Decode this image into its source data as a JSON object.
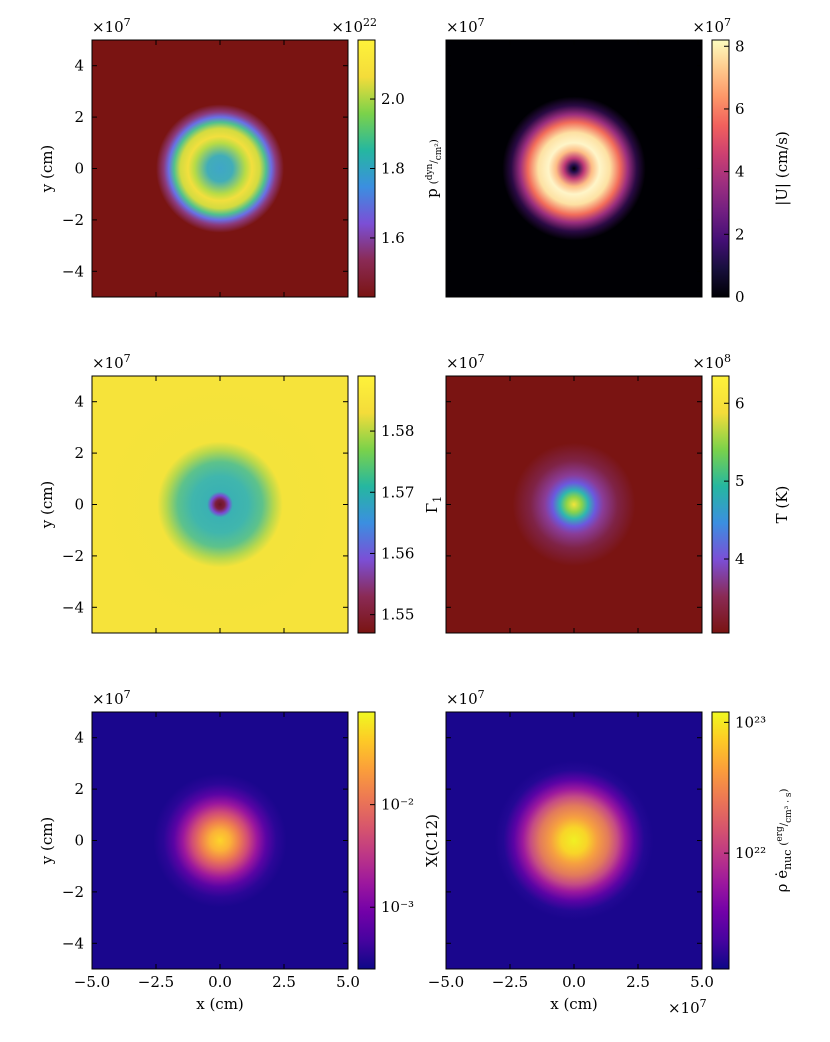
{
  "figure": {
    "x_axis_label": "x  (cm)",
    "y_axis_label": "y  (cm)",
    "axis_multiplier": "×10",
    "axis_multiplier_exp": "7",
    "x_ticks": [
      "−5.0",
      "−2.5",
      "0.0",
      "2.5",
      "5.0"
    ],
    "y_ticks": [
      "4",
      "2",
      "0",
      "−2",
      "−4"
    ]
  },
  "colors": {
    "magma": [
      "#000004",
      "#180f3d",
      "#440f76",
      "#721f81",
      "#9e2f7f",
      "#cd4071",
      "#f1605d",
      "#fd9668",
      "#feca8d",
      "#fcfdbf"
    ],
    "plasma": [
      "#0d0887",
      "#46039f",
      "#7201a8",
      "#9c179e",
      "#bd3786",
      "#d8576b",
      "#ed7953",
      "#fb9f3a",
      "#fdca26",
      "#f0f921"
    ],
    "smooth_pressure": [
      "#7a1412",
      "#8a2a55",
      "#7b4fd6",
      "#3b8fe0",
      "#25b7a0",
      "#7bd24a",
      "#f4dc3a",
      "#fef23a"
    ]
  },
  "chart_data": [
    {
      "type": "heatmap",
      "title": "",
      "xlabel": "",
      "ylabel": "y  (cm)",
      "xlim": [
        -50000000.0,
        50000000.0
      ],
      "ylim": [
        -50000000.0,
        50000000.0
      ],
      "field": "ring",
      "colormap": "smooth_pressure",
      "colorbar": {
        "label": "p  (dyn/cm²)",
        "multiplier": "×10",
        "multiplier_exp": "22",
        "ticks": [
          "2.0",
          "1.8",
          "1.6"
        ],
        "tick_values": [
          2.0,
          1.8,
          1.6
        ],
        "range": [
          1.43,
          2.17
        ]
      }
    },
    {
      "type": "heatmap",
      "title": "",
      "xlabel": "",
      "ylabel": "",
      "xlim": [
        -50000000.0,
        50000000.0
      ],
      "ylim": [
        -50000000.0,
        50000000.0
      ],
      "field": "donut",
      "colormap": "magma",
      "colorbar": {
        "label": "|U|  (cm/s)",
        "multiplier": "×10",
        "multiplier_exp": "7",
        "ticks": [
          "8",
          "6",
          "4",
          "2",
          "0"
        ],
        "tick_values": [
          8,
          6,
          4,
          2,
          0
        ],
        "range": [
          0,
          8.2
        ]
      }
    },
    {
      "type": "heatmap",
      "title": "",
      "xlabel": "",
      "ylabel": "y  (cm)",
      "xlim": [
        -50000000.0,
        50000000.0
      ],
      "ylim": [
        -50000000.0,
        50000000.0
      ],
      "field": "gamma",
      "colormap": "smooth_pressure",
      "colorbar": {
        "label": "Γ",
        "label_sub": "1",
        "multiplier": "",
        "multiplier_exp": "",
        "ticks": [
          "1.58",
          "1.57",
          "1.56",
          "1.55"
        ],
        "tick_values": [
          1.58,
          1.57,
          1.56,
          1.55
        ],
        "range": [
          1.547,
          1.589
        ]
      }
    },
    {
      "type": "heatmap",
      "title": "",
      "xlabel": "",
      "ylabel": "",
      "xlim": [
        -50000000.0,
        50000000.0
      ],
      "ylim": [
        -50000000.0,
        50000000.0
      ],
      "field": "temperature",
      "colormap": "smooth_pressure",
      "colorbar": {
        "label": "T  (K)",
        "multiplier": "×10",
        "multiplier_exp": "8",
        "ticks": [
          "6",
          "5",
          "4"
        ],
        "tick_values": [
          6,
          5,
          4
        ],
        "range": [
          3.05,
          6.35
        ]
      }
    },
    {
      "type": "heatmap",
      "title": "",
      "xlabel": "x  (cm)",
      "ylabel": "y  (cm)",
      "xlim": [
        -50000000.0,
        50000000.0
      ],
      "ylim": [
        -50000000.0,
        50000000.0
      ],
      "field": "blob",
      "colormap": "plasma",
      "colorbar": {
        "label": "X(C12)",
        "multiplier": "",
        "multiplier_exp": "",
        "log": true,
        "ticks": [
          "10⁻²",
          "10⁻³"
        ],
        "tick_values": [
          0.01,
          0.001
        ],
        "range": [
          0.00025,
          0.08
        ]
      }
    },
    {
      "type": "heatmap",
      "title": "",
      "xlabel": "x  (cm)",
      "ylabel": "",
      "xlim": [
        -50000000.0,
        50000000.0
      ],
      "ylim": [
        -50000000.0,
        50000000.0
      ],
      "field": "energy",
      "colormap": "plasma",
      "colorbar": {
        "label": "ρ ėnuc  (erg/(cm³·s))",
        "multiplier": "",
        "multiplier_exp": "",
        "log": true,
        "ticks": [
          "10²³",
          "10²²"
        ],
        "tick_values": [
          1e+23,
          1e+22
        ],
        "range": [
          1.3e+21,
          1.2e+23
        ]
      }
    }
  ],
  "panel_labels": [
    {
      "y_title": "y  (cm)",
      "cb_main": "p",
      "cb_frac_top": "dyn",
      "cb_frac_bot": "cm²"
    },
    {
      "y_title": "",
      "cb_main": "|U|  (cm/s)"
    },
    {
      "y_title": "y  (cm)",
      "cb_main": "Γ",
      "cb_sub": "1"
    },
    {
      "y_title": "",
      "cb_main": "T  (K)"
    },
    {
      "y_title": "y  (cm)",
      "cb_main": "X(C12)"
    },
    {
      "y_title": "",
      "cb_main": "ρ ė",
      "cb_sub": "nuc",
      "cb_frac_top": "erg",
      "cb_frac_bot": "cm³ · s"
    }
  ]
}
